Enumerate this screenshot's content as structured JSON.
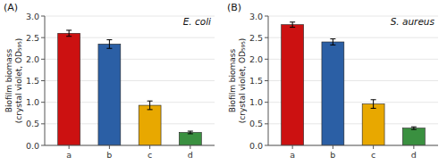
{
  "chart_data": [
    {
      "type": "bar",
      "title": "(A)",
      "subtitle": "E. coli",
      "y_label": "Biofilm biomass\n(crystal violet, OD₅₉₅)",
      "categories": [
        "a",
        "b",
        "c",
        "d"
      ],
      "values": [
        2.6,
        2.35,
        0.93,
        0.3
      ],
      "errors": [
        0.07,
        0.1,
        0.1,
        0.03
      ],
      "colors": [
        "#CC1111",
        "#2B5FA5",
        "#E8A800",
        "#3A9040"
      ],
      "ylim": [
        0,
        3.0
      ],
      "yticks": [
        {
          "value": 0.0,
          "label": "0.0"
        },
        0.5,
        {
          "value": 1.0,
          "label": "1.0"
        },
        1.5,
        {
          "value": 2.0,
          "label": "2.0"
        },
        2.5,
        {
          "value": 3.0,
          "label": "3.0"
        }
      ]
    },
    {
      "type": "bar",
      "title": "(B)",
      "subtitle": "S. aureus",
      "y_label": "Biofilm biomass\n(crystal violet, OD₅₉₅)",
      "categories": [
        "a",
        "b",
        "c",
        "d"
      ],
      "values": [
        2.8,
        2.4,
        0.96,
        0.4
      ],
      "errors": [
        0.06,
        0.07,
        0.1,
        0.03
      ],
      "colors": [
        "#CC1111",
        "#2B5FA5",
        "#E8A800",
        "#3A9040"
      ],
      "ylim": [
        0,
        3.0
      ],
      "yticks": [
        {
          "value": 0.0,
          "label": "0.0"
        },
        0.5,
        {
          "value": 1.0,
          "label": "1.0"
        },
        1.5,
        {
          "value": 2.0,
          "label": "2.0"
        },
        2.5,
        {
          "value": 3.0,
          "label": "3.0"
        }
      ]
    }
  ]
}
